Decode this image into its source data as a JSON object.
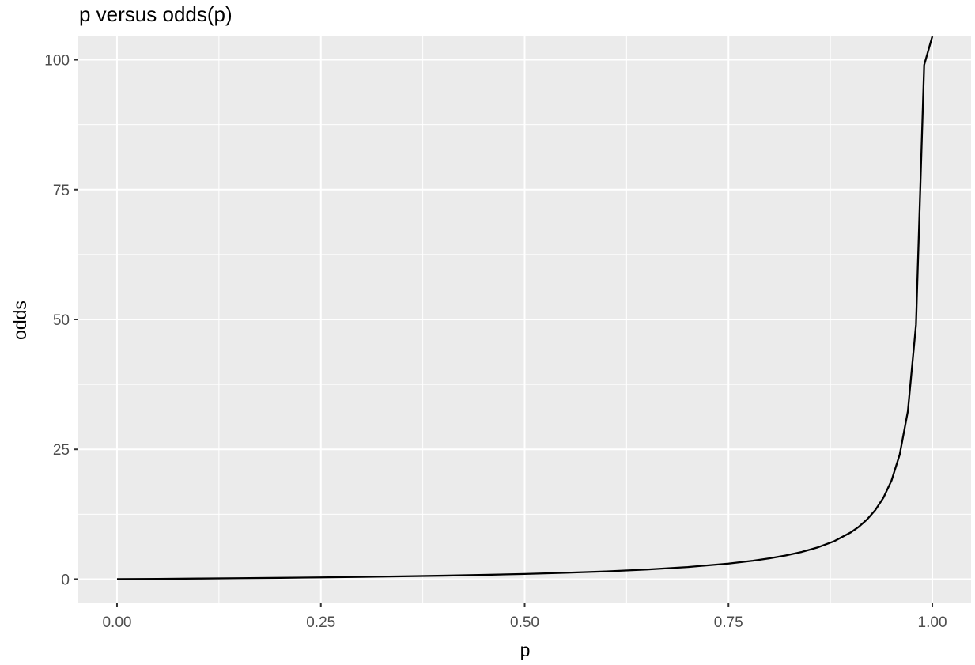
{
  "chart_data": {
    "type": "line",
    "title": "p versus odds(p)",
    "xlabel": "p",
    "ylabel": "odds",
    "xlim": [
      -0.0475,
      1.0475
    ],
    "ylim": [
      -4.5,
      104.5
    ],
    "x_ticks": [
      0.0,
      0.25,
      0.5,
      0.75,
      1.0
    ],
    "x_tick_labels": [
      "0.00",
      "0.25",
      "0.50",
      "0.75",
      "1.00"
    ],
    "y_ticks": [
      0,
      25,
      50,
      75,
      100
    ],
    "y_tick_labels": [
      "0",
      "25",
      "50",
      "75",
      "100"
    ],
    "grid": true,
    "colors": {
      "panel": "#ebebeb",
      "grid": "#ffffff",
      "line": "#000000",
      "tick_text": "#4d4d4d",
      "tick_mark": "#333333"
    },
    "series": [
      {
        "x": [
          0.0,
          0.05,
          0.1,
          0.15,
          0.2,
          0.25,
          0.3,
          0.35,
          0.4,
          0.45,
          0.5,
          0.55,
          0.6,
          0.65,
          0.7,
          0.75,
          0.78,
          0.8,
          0.82,
          0.84,
          0.86,
          0.88,
          0.9,
          0.91,
          0.92,
          0.93,
          0.94,
          0.95,
          0.96,
          0.97,
          0.98,
          0.99,
          1.0
        ],
        "y": [
          0.0,
          0.053,
          0.111,
          0.176,
          0.25,
          0.333,
          0.429,
          0.538,
          0.667,
          0.818,
          1.0,
          1.222,
          1.5,
          1.857,
          2.333,
          3.0,
          3.545,
          4.0,
          4.556,
          5.25,
          6.143,
          7.333,
          9.0,
          10.11,
          11.5,
          13.29,
          15.67,
          19.0,
          24.0,
          32.33,
          49.0,
          99.0,
          104.5
        ]
      }
    ]
  }
}
